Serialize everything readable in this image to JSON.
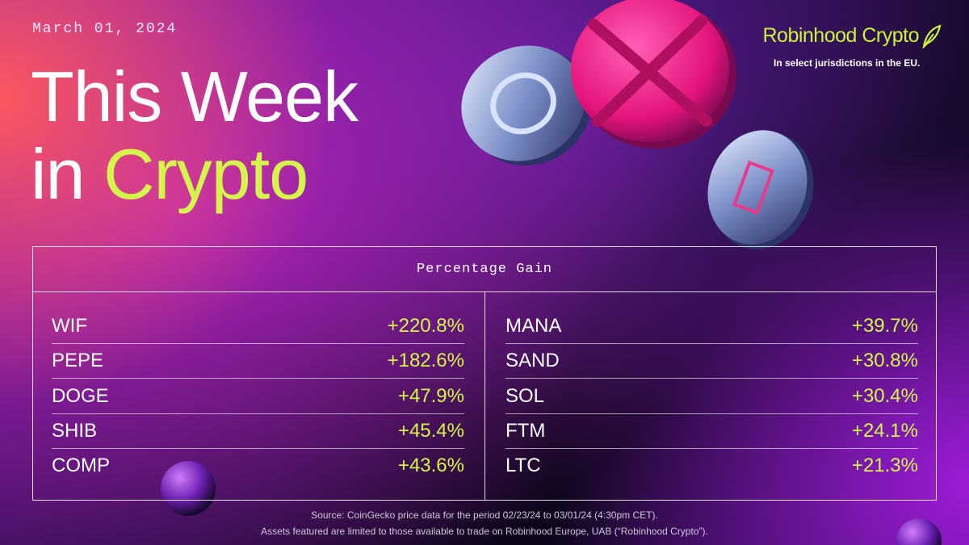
{
  "header": {
    "date": "March 01, 2024",
    "title_line1": "This Week",
    "title_line2_prefix": "in",
    "title_line2_highlight": "Crypto",
    "brand": "Robinhood Crypto",
    "brand_note": "In select jurisdictions in the EU."
  },
  "table": {
    "heading": "Percentage Gain",
    "left": [
      [
        "WIF",
        "+220.8%"
      ],
      [
        "PEPE",
        "+182.6%"
      ],
      [
        "DOGE",
        "+47.9%"
      ],
      [
        "SHIB",
        "+45.4%"
      ],
      [
        "COMP",
        "+43.6%"
      ]
    ],
    "right": [
      [
        "MANA",
        "+39.7%"
      ],
      [
        "SAND",
        "+30.8%"
      ],
      [
        "SOL",
        "+30.4%"
      ],
      [
        "FTM",
        "+24.1%"
      ],
      [
        "LTC",
        "+21.3%"
      ]
    ]
  },
  "footer": {
    "source": "Source: CoinGecko price data for the period 02/23/24 to 03/01/24 (4:30pm CET).",
    "disclaimer": "Assets featured are limited to those available to trade on Robinhood Europe, UAB (“Robinhood Crypto”)."
  }
}
